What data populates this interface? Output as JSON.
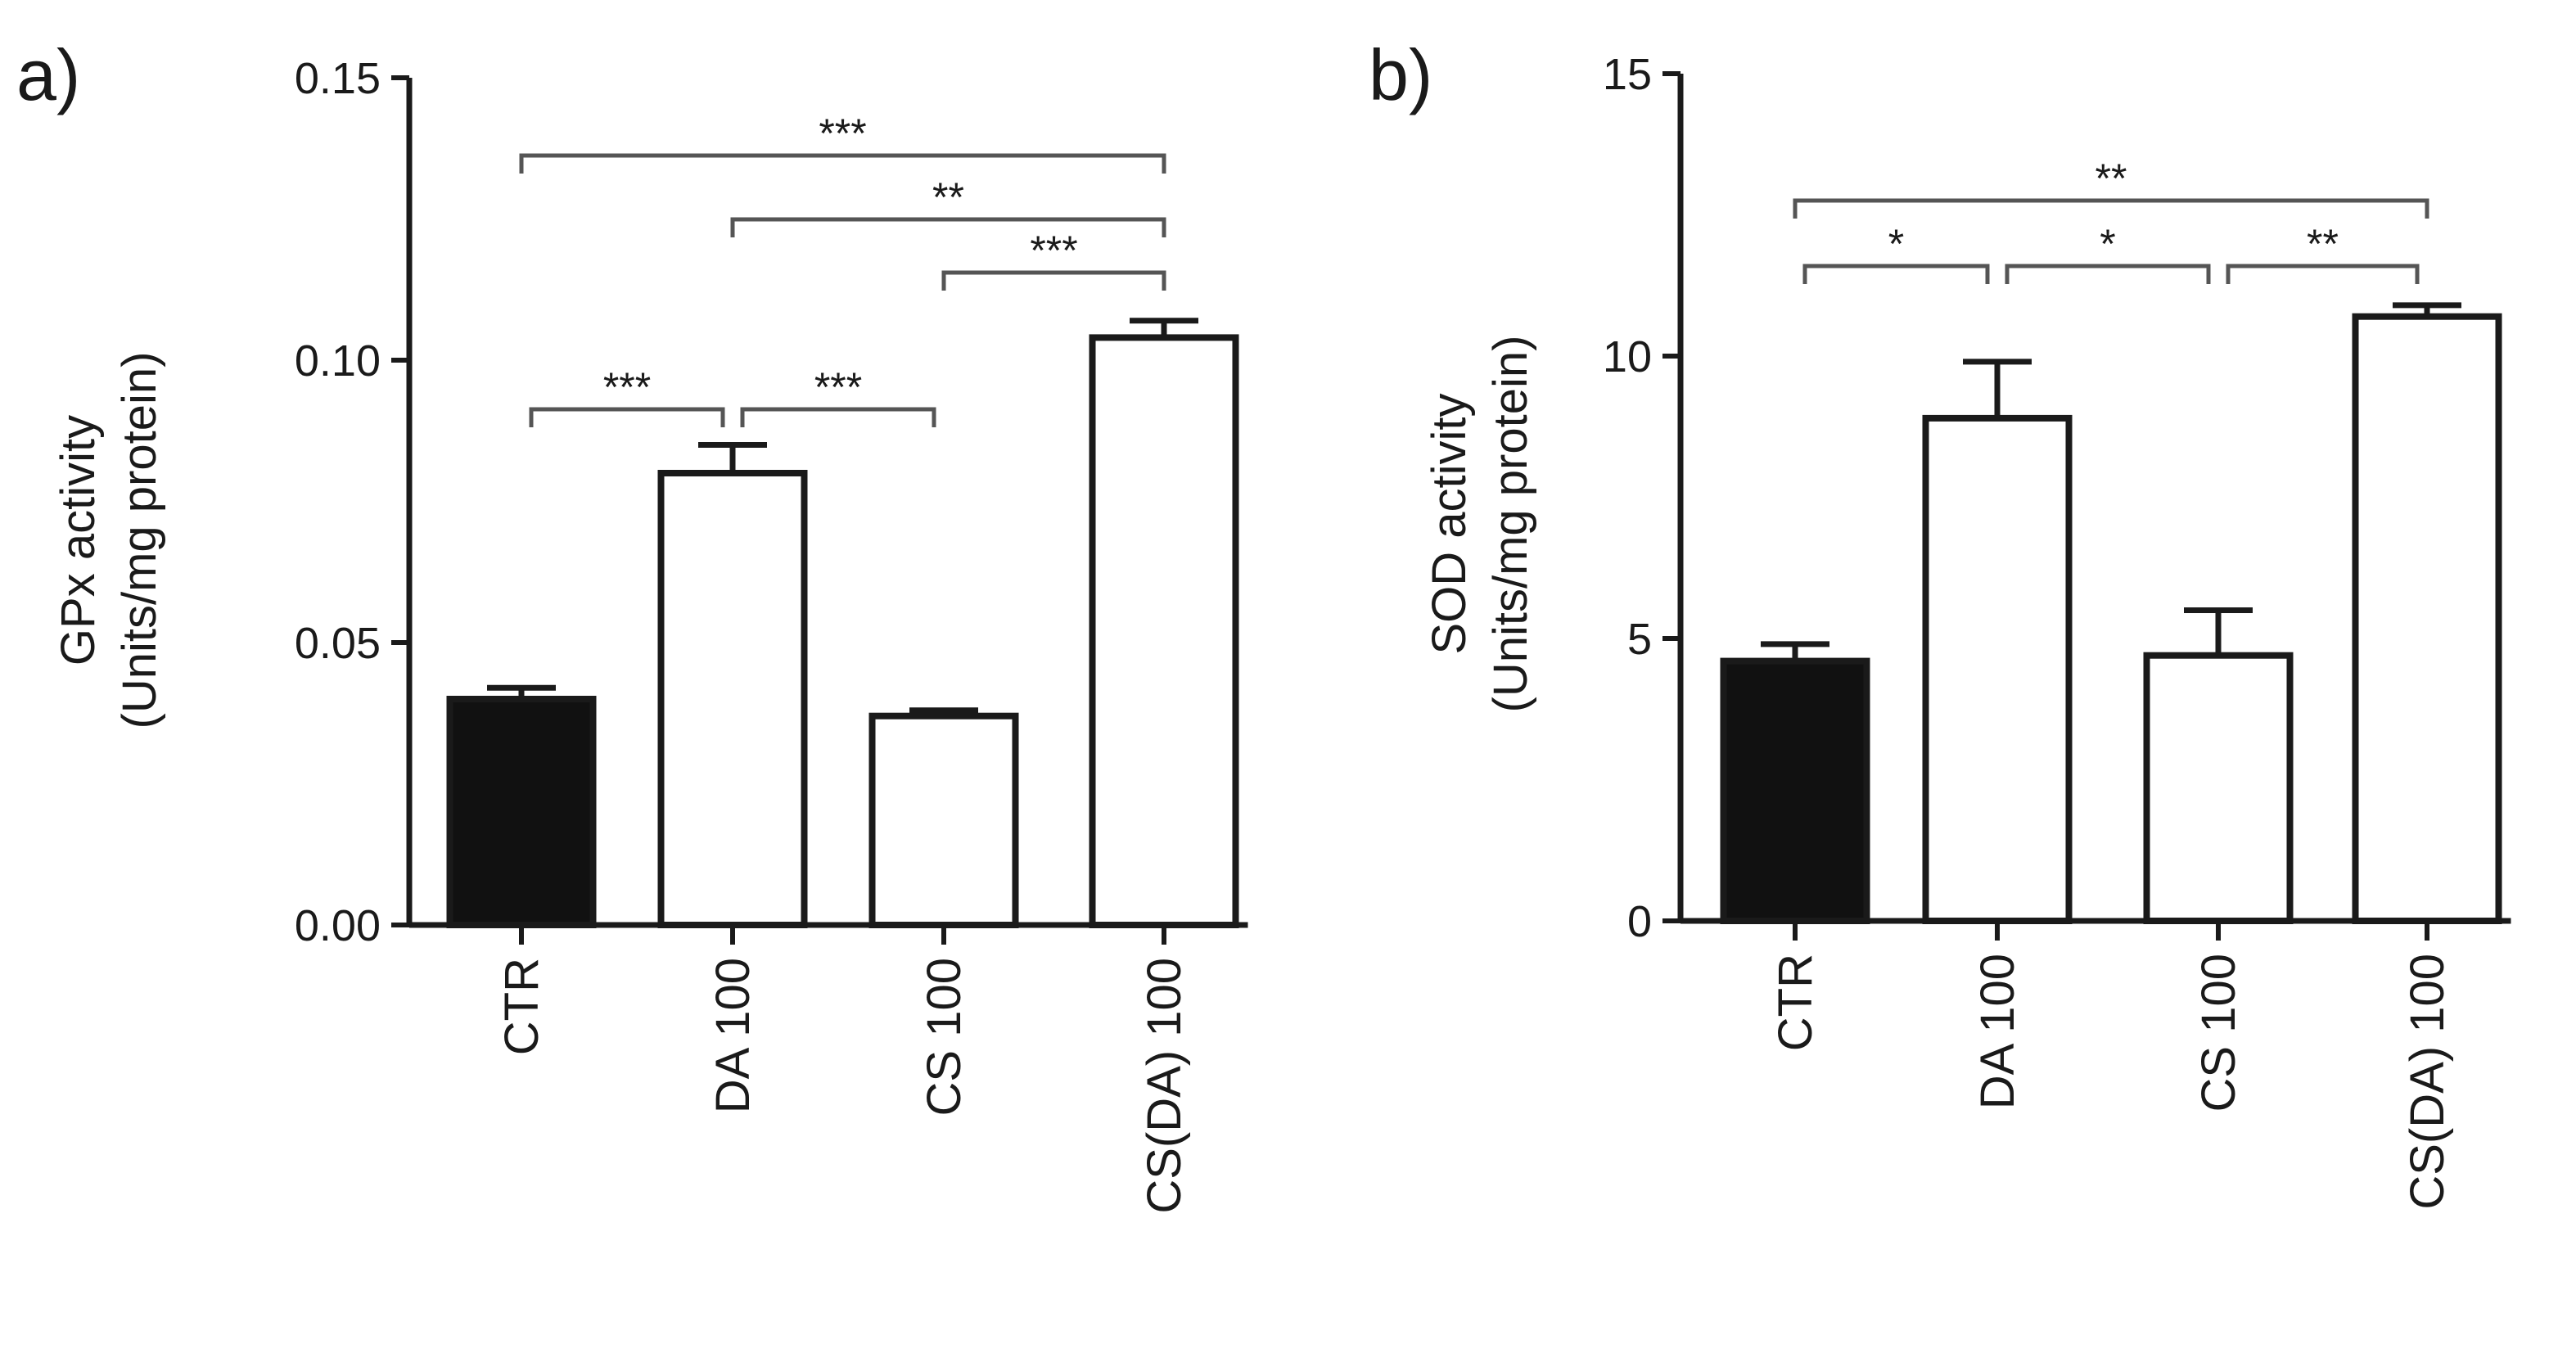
{
  "chart_data": [
    {
      "panel_label": "a)",
      "type": "bar",
      "ylabel_line1": "GPx activity",
      "ylabel_line2": "(Units/mg protein)",
      "ylim": [
        0,
        0.15
      ],
      "yticks": [
        0.0,
        0.05,
        0.1,
        0.15
      ],
      "ytick_labels": [
        "0.00",
        "0.05",
        "0.10",
        "0.15"
      ],
      "categories": [
        "CTR",
        "DA 100",
        "CS 100",
        "CS(DA) 100"
      ],
      "values": [
        0.04,
        0.08,
        0.037,
        0.104
      ],
      "errors": [
        0.002,
        0.005,
        0.001,
        0.003
      ],
      "fills": [
        "#111111",
        "#ffffff",
        "#ffffff",
        "#ffffff"
      ],
      "significance": [
        {
          "from": 0,
          "to": 3,
          "label": "***"
        },
        {
          "from": 1,
          "to": 3,
          "label": "**"
        },
        {
          "from": 2,
          "to": 3,
          "label": "***"
        },
        {
          "from": 0,
          "to": 1,
          "label": "***"
        },
        {
          "from": 1,
          "to": 2,
          "label": "***"
        }
      ]
    },
    {
      "panel_label": "b)",
      "type": "bar",
      "ylabel_line1": "SOD activity",
      "ylabel_line2": "(Units/mg protein)",
      "ylim": [
        0,
        15
      ],
      "yticks": [
        0,
        5,
        10,
        15
      ],
      "ytick_labels": [
        "0",
        "5",
        "10",
        "15"
      ],
      "categories": [
        "CTR",
        "DA 100",
        "CS 100",
        "CS(DA) 100"
      ],
      "values": [
        4.6,
        8.9,
        4.7,
        10.7
      ],
      "errors": [
        0.3,
        1.0,
        0.8,
        0.2
      ],
      "fills": [
        "#111111",
        "#ffffff",
        "#ffffff",
        "#ffffff"
      ],
      "significance": [
        {
          "from": 0,
          "to": 3,
          "label": "**"
        },
        {
          "from": 0,
          "to": 1,
          "label": "*"
        },
        {
          "from": 1,
          "to": 2,
          "label": "*"
        },
        {
          "from": 2,
          "to": 3,
          "label": "**"
        }
      ]
    }
  ]
}
